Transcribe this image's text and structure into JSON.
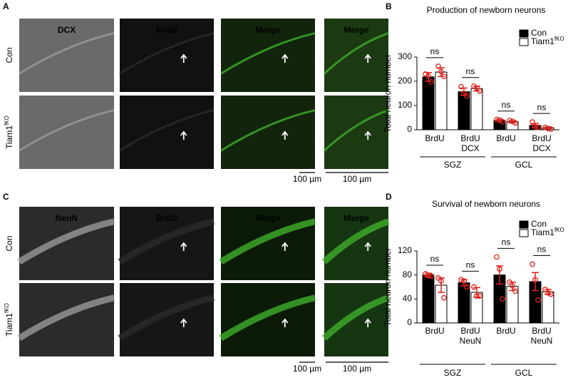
{
  "panels": [
    {
      "letter": "A",
      "channels": [
        "DCX",
        "BrdU",
        "Merge",
        "Merge"
      ],
      "rows": [
        {
          "name": "Con"
        },
        {
          "name": "Tiam1",
          "sup": "fKO"
        }
      ],
      "scale_bars": [
        "100 µm",
        "100 µm"
      ]
    },
    {
      "letter": "C",
      "channels": [
        "NeuN",
        "BrdU",
        "Merge",
        "Merge"
      ],
      "rows": [
        {
          "name": "Con"
        },
        {
          "name": "Tiam1",
          "sup": "fKO"
        }
      ],
      "scale_bars": [
        "100 µm",
        "100 µm"
      ]
    }
  ],
  "chart_data": [
    {
      "type": "bar",
      "letter": "B",
      "title": "Production of newborn neurons",
      "y_label": "Total neuron number",
      "categories": [
        [
          "BrdU"
        ],
        [
          "BrdU",
          "DCX"
        ],
        [
          "BrdU"
        ],
        [
          "BrdU",
          "DCX"
        ]
      ],
      "group_labels": [
        "SGZ",
        "GCL"
      ],
      "annotations": [
        "ns",
        "ns",
        "ns",
        "ns"
      ],
      "series": [
        {
          "name": "Con",
          "color": "#000000",
          "values": [
            218,
            157,
            38,
            18
          ],
          "errors": [
            18,
            15,
            5,
            8
          ],
          "points": [
            [
              230,
              222,
              198
            ],
            [
              178,
              150,
              140
            ],
            [
              42,
              40,
              33
            ],
            [
              32,
              12,
              10
            ]
          ]
        },
        {
          "name": "Tiam1",
          "sup": "fKO",
          "color": "#ffffff",
          "values": [
            238,
            170,
            33,
            8
          ],
          "errors": [
            18,
            10,
            5,
            4
          ],
          "points": [
            [
              262,
              240,
              220
            ],
            [
              180,
              172,
              160
            ],
            [
              38,
              35,
              28
            ],
            [
              10,
              5,
              3
            ]
          ]
        }
      ],
      "ylim": [
        0,
        300
      ],
      "yticks": [
        0,
        100,
        200,
        300
      ],
      "error_color": "#e0201b",
      "point_color": "#e0201b"
    },
    {
      "type": "bar",
      "letter": "D",
      "title": "Survival of newborn neurons",
      "y_label": "Total neuron number",
      "categories": [
        [
          "BrdU"
        ],
        [
          "BrdU",
          "NeuN"
        ],
        [
          "BrdU"
        ],
        [
          "BrdU",
          "NeuN"
        ]
      ],
      "group_labels": [
        "SGZ",
        "GCL"
      ],
      "annotations": [
        "ns",
        "ns",
        "ns",
        "ns"
      ],
      "series": [
        {
          "name": "Con",
          "color": "#000000",
          "values": [
            80,
            67,
            80,
            69
          ],
          "errors": [
            3,
            5,
            15,
            15
          ],
          "points": [
            [
              82,
              79,
              78
            ],
            [
              72,
              70,
              60
            ],
            [
              110,
              90,
              40
            ],
            [
              98,
              72,
              38
            ]
          ]
        },
        {
          "name": "Tiam1",
          "sup": "fKO",
          "color": "#ffffff",
          "values": [
            63,
            51,
            61,
            52
          ],
          "errors": [
            12,
            8,
            7,
            4
          ],
          "points": [
            [
              75,
              70,
              42
            ],
            [
              60,
              45,
              45
            ],
            [
              68,
              62,
              53
            ],
            [
              56,
              50,
              48
            ]
          ]
        }
      ],
      "ylim": [
        0,
        120
      ],
      "yticks": [
        0,
        40,
        80,
        120
      ],
      "error_color": "#e0201b",
      "point_color": "#e0201b"
    }
  ]
}
